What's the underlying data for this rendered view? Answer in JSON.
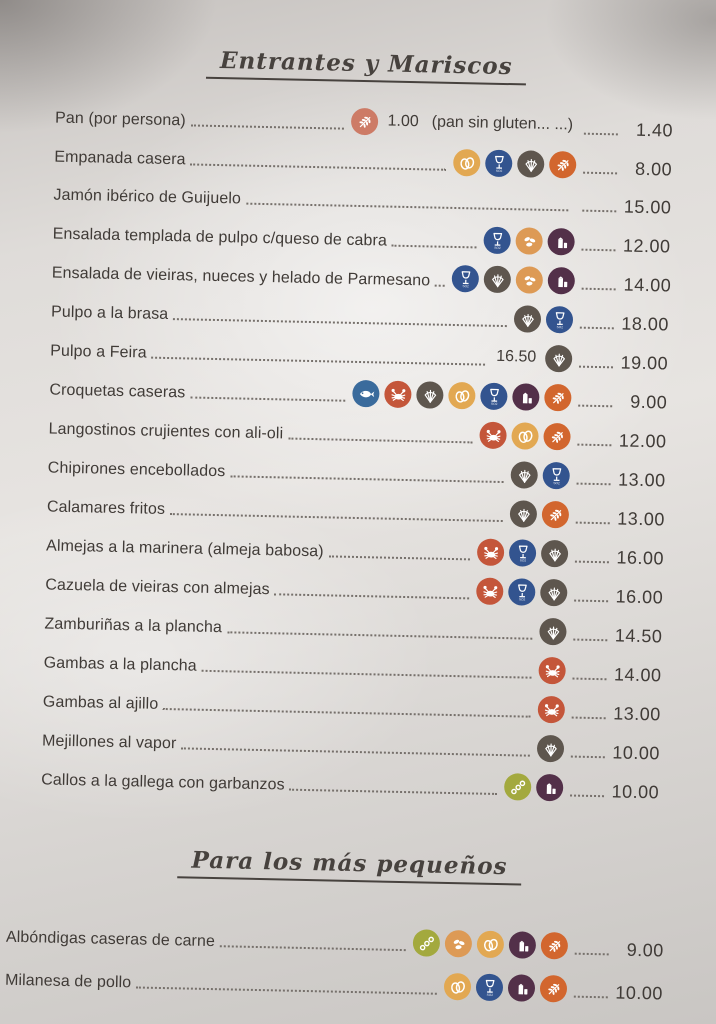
{
  "sections": [
    {
      "title": "Entrantes y Mariscos",
      "items": [
        {
          "name": "Pan (por persona)",
          "middle": [
            {
              "type": "icon",
              "icon": "gluten-icon",
              "color": "#cd7b66"
            },
            {
              "type": "text",
              "value": "1.00"
            },
            {
              "type": "text",
              "value": "(pan sin gluten... ...)"
            }
          ],
          "price": "1.40"
        },
        {
          "name": "Empanada casera",
          "middle": [
            {
              "type": "icon",
              "icon": "egg-icon"
            },
            {
              "type": "icon",
              "icon": "sulfites-icon"
            },
            {
              "type": "icon",
              "icon": "mollusc-icon"
            },
            {
              "type": "icon",
              "icon": "gluten-icon"
            }
          ],
          "price": "8.00"
        },
        {
          "name": "Jamón ibérico de Guijuelo",
          "middle": [],
          "price": "15.00"
        },
        {
          "name": "Ensalada templada de pulpo c/queso de cabra",
          "middle": [
            {
              "type": "icon",
              "icon": "sulfites-icon"
            },
            {
              "type": "icon",
              "icon": "nuts-icon"
            },
            {
              "type": "icon",
              "icon": "milk-icon"
            }
          ],
          "price": "12.00"
        },
        {
          "name": "Ensalada de vieiras, nueces y helado de Parmesano",
          "middle": [
            {
              "type": "icon",
              "icon": "sulfites-icon"
            },
            {
              "type": "icon",
              "icon": "mollusc-icon"
            },
            {
              "type": "icon",
              "icon": "nuts-icon"
            },
            {
              "type": "icon",
              "icon": "milk-icon"
            }
          ],
          "price": "14.00"
        },
        {
          "name": "Pulpo a la brasa",
          "middle": [
            {
              "type": "icon",
              "icon": "mollusc-icon"
            },
            {
              "type": "icon",
              "icon": "sulfites-icon"
            }
          ],
          "price": "18.00"
        },
        {
          "name": "Pulpo a Feira",
          "middle": [
            {
              "type": "text",
              "value": "16.50"
            },
            {
              "type": "icon",
              "icon": "mollusc-icon"
            }
          ],
          "price": "19.00"
        },
        {
          "name": "Croquetas caseras",
          "middle": [
            {
              "type": "icon",
              "icon": "fish-icon"
            },
            {
              "type": "icon",
              "icon": "crustacean-icon"
            },
            {
              "type": "icon",
              "icon": "mollusc-icon"
            },
            {
              "type": "icon",
              "icon": "egg-icon"
            },
            {
              "type": "icon",
              "icon": "sulfites-icon"
            },
            {
              "type": "icon",
              "icon": "milk-icon"
            },
            {
              "type": "icon",
              "icon": "gluten-icon"
            }
          ],
          "price": "9.00"
        },
        {
          "name": "Langostinos crujientes con ali-oli",
          "middle": [
            {
              "type": "icon",
              "icon": "crustacean-icon"
            },
            {
              "type": "icon",
              "icon": "egg-icon"
            },
            {
              "type": "icon",
              "icon": "gluten-icon"
            }
          ],
          "price": "12.00"
        },
        {
          "name": "Chipirones encebollados",
          "middle": [
            {
              "type": "icon",
              "icon": "mollusc-icon"
            },
            {
              "type": "icon",
              "icon": "sulfites-icon"
            }
          ],
          "price": "13.00"
        },
        {
          "name": "Calamares fritos",
          "middle": [
            {
              "type": "icon",
              "icon": "mollusc-icon"
            },
            {
              "type": "icon",
              "icon": "gluten-icon"
            }
          ],
          "price": "13.00"
        },
        {
          "name": "Almejas a la marinera (almeja babosa)",
          "middle": [
            {
              "type": "icon",
              "icon": "crustacean-icon"
            },
            {
              "type": "icon",
              "icon": "sulfites-icon"
            },
            {
              "type": "icon",
              "icon": "mollusc-icon"
            }
          ],
          "price": "16.00"
        },
        {
          "name": "Cazuela de vieiras con almejas",
          "middle": [
            {
              "type": "icon",
              "icon": "crustacean-icon"
            },
            {
              "type": "icon",
              "icon": "sulfites-icon"
            },
            {
              "type": "icon",
              "icon": "mollusc-icon"
            }
          ],
          "price": "16.00"
        },
        {
          "name": "Zamburiñas a la plancha",
          "middle": [
            {
              "type": "icon",
              "icon": "mollusc-icon"
            }
          ],
          "price": "14.50"
        },
        {
          "name": "Gambas a la plancha",
          "middle": [
            {
              "type": "icon",
              "icon": "crustacean-icon"
            }
          ],
          "price": "14.00"
        },
        {
          "name": "Gambas al ajillo",
          "middle": [
            {
              "type": "icon",
              "icon": "crustacean-icon"
            }
          ],
          "price": "13.00"
        },
        {
          "name": "Mejillones al vapor",
          "middle": [
            {
              "type": "icon",
              "icon": "mollusc-icon"
            }
          ],
          "price": "10.00"
        },
        {
          "name": "Callos a la gallega con garbanzos",
          "middle": [
            {
              "type": "icon",
              "icon": "soy-icon"
            },
            {
              "type": "icon",
              "icon": "milk-icon"
            }
          ],
          "price": "10.00"
        }
      ]
    },
    {
      "title": "Para los más pequeños",
      "items": [
        {
          "name": "Albóndigas caseras de carne",
          "middle": [
            {
              "type": "icon",
              "icon": "soy-icon"
            },
            {
              "type": "icon",
              "icon": "nuts-icon"
            },
            {
              "type": "icon",
              "icon": "egg-icon"
            },
            {
              "type": "icon",
              "icon": "milk-icon"
            },
            {
              "type": "icon",
              "icon": "gluten-icon"
            }
          ],
          "price": "9.00"
        },
        {
          "name": "Milanesa de pollo",
          "middle": [
            {
              "type": "icon",
              "icon": "egg-icon"
            },
            {
              "type": "icon",
              "icon": "sulfites-icon"
            },
            {
              "type": "icon",
              "icon": "milk-icon"
            },
            {
              "type": "icon",
              "icon": "gluten-icon"
            }
          ],
          "price": "10.00"
        }
      ]
    }
  ],
  "allergen_colors": {
    "gluten-icon": "#d2662e",
    "egg-icon": "#e2a852",
    "sulfites-icon": "#33548f",
    "mollusc-icon": "#5e564e",
    "crustacean-icon": "#c4563a",
    "fish-icon": "#3a6b9c",
    "milk-icon": "#533049",
    "nuts-icon": "#dd9a55",
    "soy-icon": "#a3a93e"
  },
  "sulfites_label": "SO2"
}
